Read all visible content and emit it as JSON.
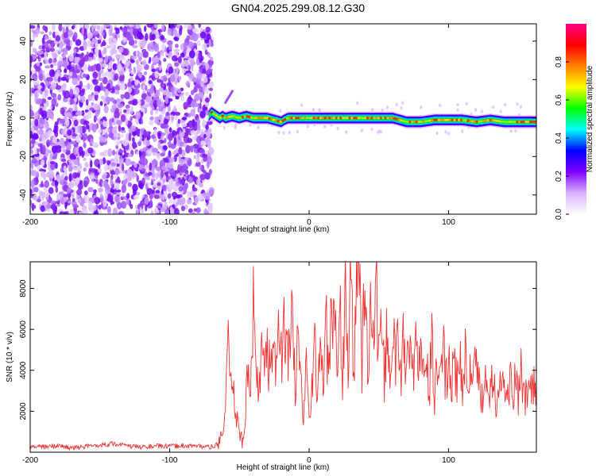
{
  "title": "GN04.2025.299.08.12.G30",
  "chart_data": [
    {
      "type": "heatmap",
      "xlabel": "Height of straight line (km)",
      "ylabel": "Frequency (Hz)",
      "xlim": [
        -200,
        163
      ],
      "ylim": [
        -50,
        49
      ],
      "xticks": [
        -200,
        -100,
        0,
        100
      ],
      "yticks": [
        -40,
        -20,
        0,
        20,
        40
      ],
      "colorbar": {
        "label": "Normalized spectral amplitude",
        "range": [
          0,
          1
        ],
        "ticks": [
          "0.0",
          "0.2",
          "0.4",
          "0.6",
          "0.8"
        ],
        "colors": [
          "#ffffff",
          "#d8b4ff",
          "#8000ff",
          "#0000ff",
          "#00ffff",
          "#00ff00",
          "#ffff00",
          "#ff8000",
          "#ff0000",
          "#ff0088"
        ]
      },
      "noise_region_x": [
        -200,
        -72
      ],
      "band_track": {
        "x": [
          -72,
          -70,
          -68,
          -66,
          -64,
          -62,
          -60,
          -55,
          -50,
          -45,
          -40,
          -35,
          -30,
          -25,
          -20,
          -18,
          -15,
          -10,
          -5,
          0,
          10,
          20,
          30,
          40,
          50,
          60,
          65,
          70,
          80,
          90,
          100,
          110,
          120,
          130,
          140,
          150,
          160,
          163
        ],
        "y": [
          1,
          3,
          2,
          1,
          0,
          1,
          0,
          1,
          0,
          1,
          0,
          0,
          0,
          -1,
          -2,
          -1,
          0,
          0,
          0,
          0,
          0,
          0,
          0,
          0,
          0,
          0,
          -1,
          -2,
          -2,
          -1,
          -1,
          -1,
          -2,
          -1,
          -2,
          -2,
          -2,
          -2
        ]
      },
      "weak_streak": {
        "x": [
          -60,
          -55
        ],
        "y": [
          8,
          14
        ]
      }
    },
    {
      "type": "line",
      "xlabel": "Height of straight line (km)",
      "ylabel": "SNR (10 * v/v)",
      "xlim": [
        -200,
        163
      ],
      "ylim": [
        0,
        9300
      ],
      "xticks": [
        -200,
        -100,
        0,
        100
      ],
      "yticks": [
        2000,
        4000,
        6000,
        8000
      ],
      "series": [
        {
          "color": "#ee3333",
          "x": [
            -200,
            -190,
            -180,
            -170,
            -160,
            -150,
            -140,
            -130,
            -120,
            -110,
            -100,
            -90,
            -80,
            -70,
            -65,
            -62,
            -60,
            -58,
            -56,
            -54,
            -52,
            -50,
            -48,
            -46,
            -44,
            -42,
            -40,
            -38,
            -36,
            -34,
            -32,
            -30,
            -28,
            -26,
            -24,
            -22,
            -20,
            -18,
            -16,
            -14,
            -12,
            -10,
            -8,
            -6,
            -4,
            -2,
            0,
            2,
            4,
            6,
            8,
            10,
            12,
            14,
            16,
            18,
            20,
            22,
            24,
            26,
            28,
            30,
            32,
            34,
            36,
            38,
            40,
            42,
            44,
            46,
            48,
            50,
            52,
            54,
            56,
            58,
            60,
            62,
            64,
            66,
            68,
            70,
            72,
            74,
            76,
            78,
            80,
            82,
            84,
            86,
            88,
            90,
            92,
            94,
            96,
            98,
            100,
            102,
            104,
            106,
            108,
            110,
            112,
            114,
            116,
            118,
            120,
            122,
            124,
            126,
            128,
            130,
            132,
            134,
            136,
            138,
            140,
            142,
            144,
            146,
            148,
            150,
            152,
            154,
            156,
            158,
            160,
            163
          ],
          "y": [
            300,
            250,
            320,
            200,
            280,
            350,
            420,
            300,
            250,
            300,
            280,
            320,
            300,
            250,
            400,
            900,
            2200,
            4800,
            3300,
            2600,
            1800,
            900,
            600,
            1200,
            4200,
            2800,
            8000,
            3200,
            3600,
            4500,
            3800,
            5000,
            4000,
            4800,
            4200,
            5900,
            4600,
            6200,
            5100,
            4400,
            6800,
            3000,
            5500,
            3500,
            1500,
            4500,
            1800,
            3000,
            6400,
            2500,
            4800,
            3200,
            7000,
            3100,
            6700,
            7500,
            3500,
            7800,
            3000,
            8500,
            4000,
            8300,
            3600,
            8500,
            9300,
            4200,
            8900,
            3700,
            7200,
            5000,
            8000,
            4500,
            5500,
            3600,
            6400,
            3700,
            6300,
            4200,
            5300,
            3500,
            6200,
            3800,
            5500,
            3200,
            5200,
            4000,
            5000,
            3500,
            4800,
            3000,
            5100,
            2600,
            4300,
            3700,
            5500,
            3300,
            4500,
            2800,
            4600,
            3200,
            4400,
            3500,
            4800,
            2700,
            4100,
            3600,
            4100,
            3200,
            2600,
            4000,
            3100,
            3200,
            4300,
            2500,
            3500,
            2800,
            3400,
            2500,
            3600,
            3000,
            3400,
            2500,
            3800,
            2600,
            2900,
            3100,
            3600,
            3300
          ]
        }
      ]
    }
  ]
}
